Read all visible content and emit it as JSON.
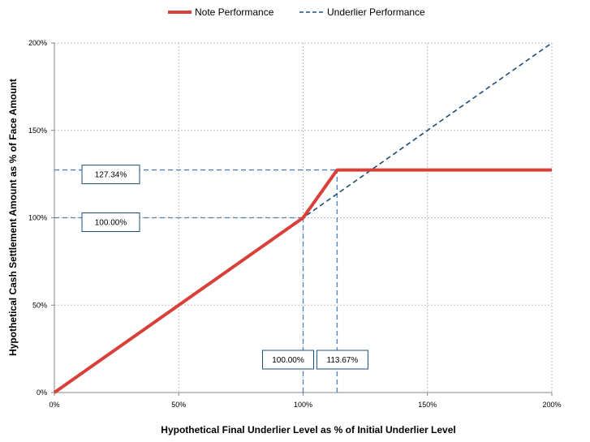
{
  "chart_data": {
    "type": "line",
    "xlabel": "Hypothetical Final Underlier Level as % of Initial Underlier Level",
    "ylabel": "Hypothetical Cash Settlement Amount as % of Face Amount",
    "xlim": [
      0,
      200
    ],
    "ylim": [
      0,
      200
    ],
    "x_ticks": [
      0,
      50,
      100,
      150,
      200
    ],
    "x_tick_labels": [
      "0%",
      "50%",
      "100%",
      "150%",
      "200%"
    ],
    "y_ticks": [
      0,
      50,
      100,
      150,
      200
    ],
    "y_tick_labels": [
      "0%",
      "50%",
      "100%",
      "150%",
      "200%"
    ],
    "grid": true,
    "legend_position": "top-center",
    "series": [
      {
        "name": "Note Performance",
        "color": "#d9403a",
        "style": "solid",
        "x": [
          0,
          100,
          113.67,
          200
        ],
        "y": [
          0,
          100,
          127.34,
          127.34
        ]
      },
      {
        "name": "Underlier Performance",
        "color": "#1f4e79",
        "style": "dashed",
        "x": [
          0,
          200
        ],
        "y": [
          0,
          200
        ]
      }
    ],
    "reference_lines": [
      {
        "orientation": "horizontal",
        "value": 127.34,
        "from": 0,
        "to": 113.67,
        "color": "#4f81bd"
      },
      {
        "orientation": "horizontal",
        "value": 100,
        "from": 0,
        "to": 100,
        "color": "#4f81bd"
      },
      {
        "orientation": "vertical",
        "value": 100,
        "from": 0,
        "to": 100,
        "color": "#4f81bd"
      },
      {
        "orientation": "vertical",
        "value": 113.67,
        "from": 0,
        "to": 127.34,
        "color": "#4f81bd"
      }
    ],
    "annotations": [
      {
        "text": "127.34%",
        "axis": "y",
        "value": 127.34
      },
      {
        "text": "100.00%",
        "axis": "y",
        "value": 100
      },
      {
        "text": "100.00%",
        "axis": "x",
        "value": 100
      },
      {
        "text": "113.67%",
        "axis": "x",
        "value": 113.67
      }
    ]
  }
}
